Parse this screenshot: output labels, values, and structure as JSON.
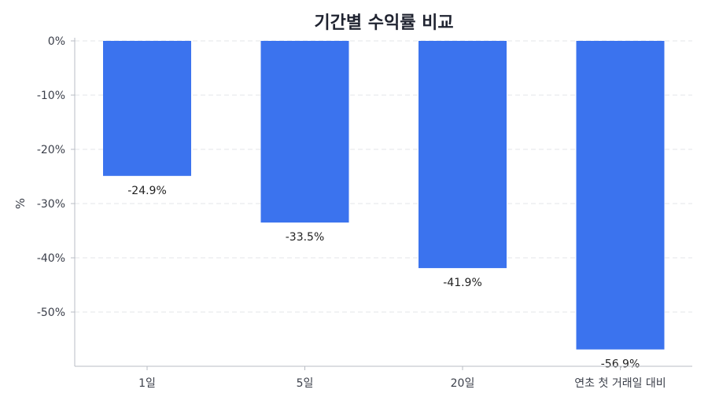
{
  "chart_data": {
    "type": "bar",
    "title": "기간별 수익률 비교",
    "ylabel": "%",
    "xlabel": "",
    "categories": [
      "1일",
      "5일",
      "20일",
      "연초 첫 거래일 대비"
    ],
    "values": [
      -24.9,
      -33.5,
      -41.9,
      -56.9
    ],
    "data_labels": [
      "-24.9%",
      "-33.5%",
      "-41.9%",
      "-56.9%"
    ],
    "y_ticks": [
      0,
      -10,
      -20,
      -30,
      -40,
      -50
    ],
    "y_tick_labels": [
      "0%",
      "-10%",
      "-20%",
      "-30%",
      "-40%",
      "-50%"
    ],
    "ylim": [
      -60,
      0
    ],
    "grid": true,
    "bar_color": "#3b73ee"
  }
}
